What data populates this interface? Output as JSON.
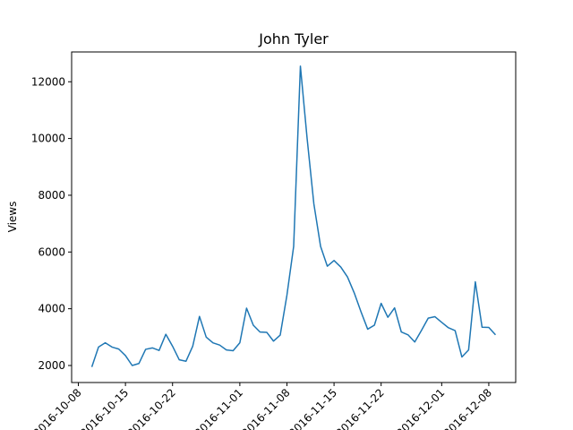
{
  "chart_data": {
    "type": "line",
    "title": "John Tyler",
    "xlabel": "",
    "ylabel": "Views",
    "x_start": "2016-10-10",
    "x_ticks": [
      "2016-10-08",
      "2016-10-15",
      "2016-10-22",
      "2016-11-01",
      "2016-11-08",
      "2016-11-15",
      "2016-11-22",
      "2016-12-01",
      "2016-12-08"
    ],
    "y_ticks": [
      2000,
      4000,
      6000,
      8000,
      10000,
      12000
    ],
    "ylim": [
      1400,
      13050
    ],
    "grid": false,
    "line_color": "#1f77b4",
    "series": [
      {
        "values": [
          1950,
          2650,
          2800,
          2650,
          2580,
          2350,
          2000,
          2070,
          2570,
          2620,
          2530,
          3100,
          2680,
          2200,
          2150,
          2680,
          3730,
          3000,
          2800,
          2720,
          2550,
          2520,
          2800,
          4020,
          3420,
          3180,
          3170,
          2860,
          3070,
          4480,
          6200,
          12550,
          10000,
          7700,
          6200,
          5500,
          5700,
          5470,
          5120,
          4560,
          3900,
          3280,
          3420,
          4190,
          3700,
          4030,
          3180,
          3080,
          2830,
          3240,
          3670,
          3720,
          3520,
          3330,
          3230,
          2300,
          2550,
          4950,
          3350,
          3340,
          3080
        ]
      }
    ]
  }
}
